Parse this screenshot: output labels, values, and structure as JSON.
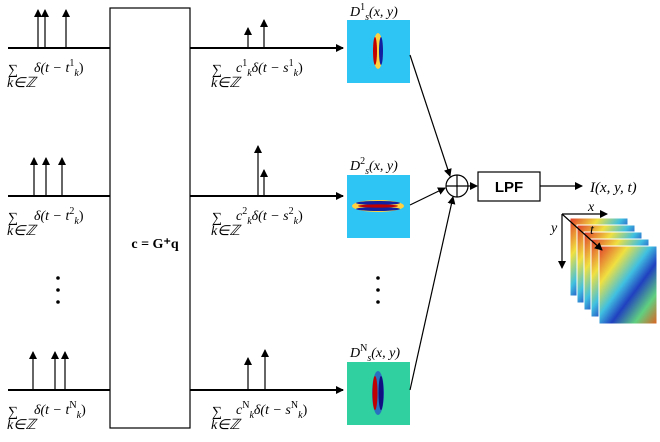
{
  "inputs": [
    {
      "sum": "∑",
      "index": "k∈ℤ",
      "expr": "δ(t − t",
      "sub": "k",
      "sup": "1",
      "close": ")"
    },
    {
      "sum": "∑",
      "index": "k∈ℤ",
      "expr": "δ(t − t",
      "sub": "k",
      "sup": "2",
      "close": ")"
    },
    {
      "sum": "∑",
      "index": "k∈ℤ",
      "expr": "δ(t − t",
      "sub": "k",
      "sup": "N",
      "close": ")"
    }
  ],
  "block": {
    "label": "c = G⁺q"
  },
  "outputs": [
    {
      "sum": "∑",
      "index": "k∈ℤ",
      "coef": "c",
      "coef_sub": "k",
      "coef_sup": "1",
      "expr": "δ(t − s",
      "sub": "k",
      "sup": "1",
      "close": ")"
    },
    {
      "sum": "∑",
      "index": "k∈ℤ",
      "coef": "c",
      "coef_sub": "k",
      "coef_sup": "2",
      "expr": "δ(t − s",
      "sub": "k",
      "sup": "2",
      "close": ")"
    },
    {
      "sum": "∑",
      "index": "k∈ℤ",
      "coef": "c",
      "coef_sub": "k",
      "coef_sup": "N",
      "expr": "δ(t − s",
      "sub": "k",
      "sup": "N",
      "close": ")"
    }
  ],
  "filters": [
    {
      "name": "D",
      "sub": "s",
      "sup": "1",
      "args": "(x, y)"
    },
    {
      "name": "D",
      "sub": "s",
      "sup": "2",
      "args": "(x, y)"
    },
    {
      "name": "D",
      "sub": "s",
      "sup": "N",
      "args": "(x, y)"
    }
  ],
  "lpf": "LPF",
  "output": "I(x, y, t)",
  "axes": {
    "x": "x",
    "y": "y",
    "t": "t"
  }
}
